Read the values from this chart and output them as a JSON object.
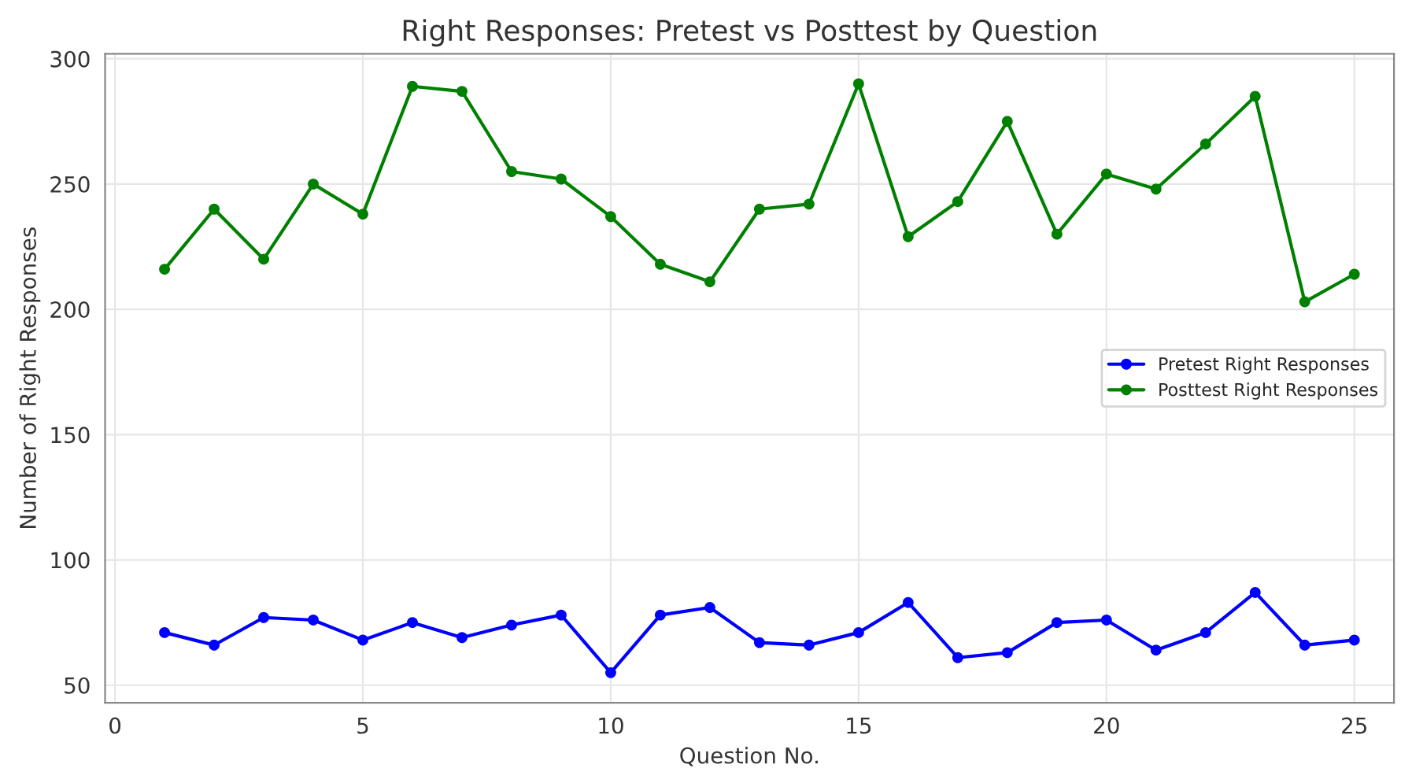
{
  "chart_data": {
    "type": "line",
    "title": "Right Responses: Pretest vs Posttest by Question",
    "xlabel": "Question No.",
    "ylabel": "Number of Right Responses",
    "x": [
      1,
      2,
      3,
      4,
      5,
      6,
      7,
      8,
      9,
      10,
      11,
      12,
      13,
      14,
      15,
      16,
      17,
      18,
      19,
      20,
      21,
      22,
      23,
      24,
      25
    ],
    "series": [
      {
        "name": "Pretest Right Responses",
        "color": "#0000ff",
        "values": [
          71,
          66,
          77,
          76,
          68,
          75,
          69,
          74,
          78,
          55,
          78,
          81,
          67,
          66,
          71,
          83,
          61,
          63,
          75,
          76,
          64,
          71,
          87,
          66,
          68
        ]
      },
      {
        "name": "Posttest Right Responses",
        "color": "#008000",
        "values": [
          216,
          240,
          220,
          250,
          238,
          289,
          287,
          255,
          252,
          237,
          218,
          211,
          240,
          242,
          290,
          229,
          243,
          275,
          230,
          254,
          248,
          266,
          285,
          203,
          214
        ]
      }
    ],
    "xlim": [
      -0.2,
      25.8
    ],
    "ylim": [
      43,
      302
    ],
    "xticks": [
      0,
      5,
      10,
      15,
      20,
      25
    ],
    "yticks": [
      50,
      100,
      150,
      200,
      250,
      300
    ],
    "grid": true,
    "legend": "right",
    "marker": "circle",
    "line_style": "solid"
  }
}
